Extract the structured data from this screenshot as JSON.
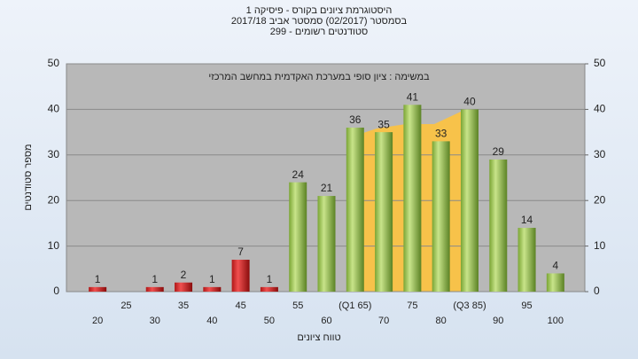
{
  "chart_data": {
    "type": "bar",
    "title": "היסטוגרמת ציונים בקורס - פיסיקה 1",
    "subtitle": "בסמסטר  (02/2017)  סמסטר אביב 2017/18",
    "subtitle2": "סטודנטים רשומים - 299",
    "annotation": "במשימה : ציון סופי במערכת האקדמית במחשב המרכזי",
    "x_label": "טווח ציונים",
    "y_label": "מספר סטודנטים",
    "categories": [
      "20",
      "25",
      "30",
      "35",
      "40",
      "45",
      "50",
      "55",
      "60",
      "(Q1 65)",
      "70",
      "75",
      "80",
      "(Q3 85)",
      "90",
      "95",
      "100"
    ],
    "values": [
      1,
      null,
      1,
      2,
      1,
      7,
      1,
      24,
      21,
      36,
      35,
      41,
      33,
      40,
      29,
      14,
      4
    ],
    "bar_colors": [
      "red",
      "red",
      "red",
      "red",
      "red",
      "red",
      "red",
      "green",
      "green",
      "green",
      "green",
      "green",
      "green",
      "green",
      "green",
      "green",
      "green"
    ],
    "ylim": [
      0,
      50
    ],
    "yticks": [
      0,
      10,
      20,
      30,
      40,
      50
    ],
    "y2lim": [
      0,
      50
    ],
    "y2ticks": [
      0,
      10,
      20,
      30,
      40,
      50
    ],
    "grid": true
  }
}
